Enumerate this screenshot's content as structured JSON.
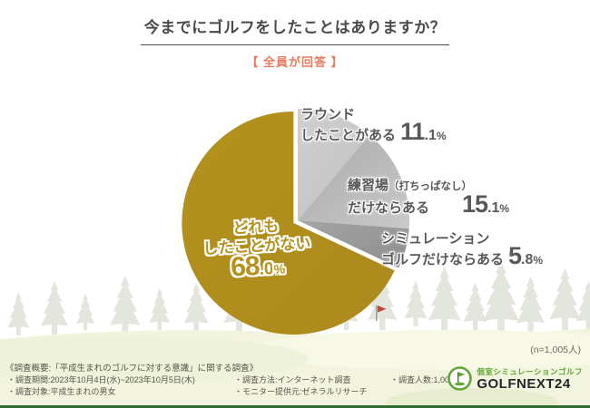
{
  "header": {
    "title": "今までにゴルフをしたことはありますか？",
    "subtitle": "【 全員が回答 】",
    "subtitle_color": "#E87B5B"
  },
  "chart_data": {
    "type": "pie",
    "title": "今までにゴルフをしたことはありますか？",
    "population_note": "全員が回答",
    "sample_label": "(n=1,005人)",
    "start_angle_deg": 0,
    "direction": "clockwise",
    "slices": [
      {
        "label": "ラウンドしたことがある",
        "label_lines": [
          "ラウンド",
          "したことがある"
        ],
        "value_pct": 11.1,
        "color": "#CFCFCF",
        "color2": "#C1C1C1",
        "exploded": false
      },
      {
        "label": "練習場（打ちっぱなし）だけならある",
        "label_lines": [
          "練習場",
          "（打ちっぱなし）",
          "だけならある"
        ],
        "value_pct": 15.1,
        "color": "#A9A9A9",
        "color2": "#C9C9C9",
        "exploded": false
      },
      {
        "label": "シミュレーションゴルフだけならある",
        "label_lines": [
          "シミュレーション",
          "ゴルフだけならある"
        ],
        "value_pct": 5.8,
        "color": "#A4A4A4",
        "color2": "#8E8E8E",
        "exploded": false
      },
      {
        "label": "どれもしたことがない",
        "label_lines": [
          "どれも",
          "したことがない"
        ],
        "value_pct": 68.0,
        "color": "#B4921D",
        "color2": "#AC8A1C",
        "exploded": true
      }
    ]
  },
  "footer": {
    "survey_title": "《調査概要:「平成生まれのゴルフに対する意識」に関する調査》",
    "col1": [
      "・調査期間:2023年10月4日(水)~2023年10月5日(木)",
      "・調査対象:平成生まれの男女"
    ],
    "col2": [
      "・調査方法:インターネット調査",
      "・モニター提供元:ゼネラルリサーチ"
    ],
    "col3": [
      "・調査人数:1,005人"
    ]
  },
  "logo": {
    "tagline": "個室シミュレーションゴルフ",
    "name": "GOLFNEXT24",
    "green": "#5FA636",
    "dark": "#26262E"
  },
  "colors": {
    "accent_gold": "#B4921D",
    "tree": "#E2E6DC",
    "ground": "#F2F4DD",
    "bottom_line": "#2E6B31",
    "flag_red": "#C0463C"
  }
}
